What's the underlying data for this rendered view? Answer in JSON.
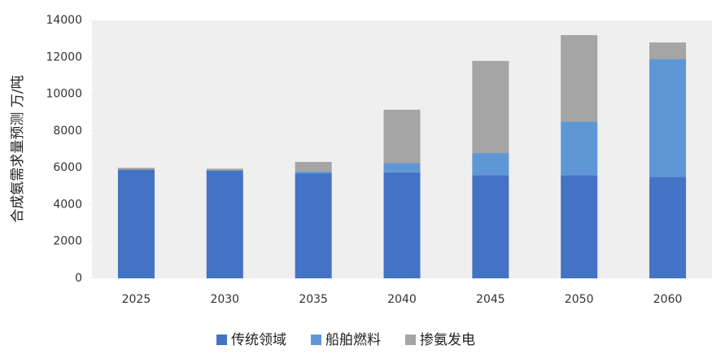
{
  "chart_data": {
    "type": "stacked_bar",
    "y_label": "合成氨需求量预测  万/吨",
    "categories": [
      "2025",
      "2030",
      "2035",
      "2040",
      "2045",
      "2050",
      "2060"
    ],
    "series": [
      {
        "name": "传统领域",
        "color": "#4472c4",
        "values": [
          5900,
          5850,
          5700,
          5750,
          5600,
          5600,
          5500
        ]
      },
      {
        "name": "船舶燃料",
        "color": "#5f97d6",
        "values": [
          0,
          0,
          100,
          500,
          1200,
          2900,
          6400
        ]
      },
      {
        "name": "掺氨发电",
        "color": "#a5a5a5",
        "values": [
          100,
          100,
          520,
          2900,
          5000,
          4700,
          900
        ]
      }
    ],
    "ylim": [
      0,
      14000
    ],
    "yticks": [
      0,
      2000,
      4000,
      6000,
      8000,
      10000,
      12000,
      14000
    ],
    "plot_background": "#efefef",
    "legend": "bottom"
  }
}
